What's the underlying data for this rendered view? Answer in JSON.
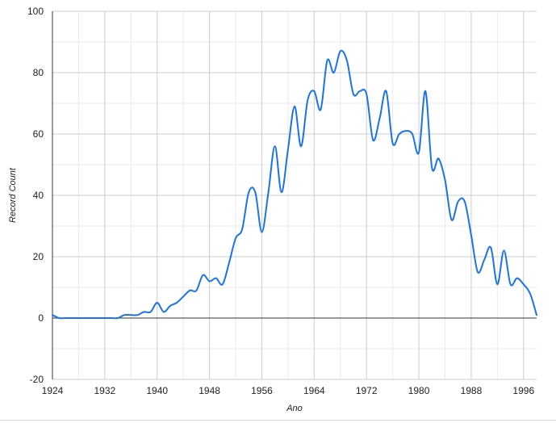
{
  "chart_data": {
    "type": "line",
    "title": "",
    "xlabel": "Ano",
    "ylabel": "Record Count",
    "xlim": [
      1924,
      1998
    ],
    "ylim": [
      -20,
      100
    ],
    "x_ticks": [
      1924,
      1932,
      1940,
      1948,
      1956,
      1964,
      1972,
      1980,
      1988,
      1996
    ],
    "y_ticks": [
      -20,
      0,
      20,
      40,
      60,
      80,
      100
    ],
    "grid": true,
    "legend": "none",
    "series_color": "#1a73e8",
    "series": [
      {
        "x": [
          1924,
          1925,
          1926,
          1927,
          1928,
          1929,
          1930,
          1931,
          1932,
          1933,
          1934,
          1935,
          1936,
          1937,
          1938,
          1939,
          1940,
          1941,
          1942,
          1943,
          1944,
          1945,
          1946,
          1947,
          1948,
          1949,
          1950,
          1951,
          1952,
          1953,
          1954,
          1955,
          1956,
          1957,
          1958,
          1959,
          1960,
          1961,
          1962,
          1963,
          1964,
          1965,
          1966,
          1967,
          1968,
          1969,
          1970,
          1971,
          1972,
          1973,
          1974,
          1975,
          1976,
          1977,
          1978,
          1979,
          1980,
          1981,
          1982,
          1983,
          1984,
          1985,
          1986,
          1987,
          1988,
          1989,
          1990,
          1991,
          1992,
          1993,
          1994,
          1995,
          1996,
          1997,
          1998
        ],
        "values": [
          1,
          0,
          0,
          0,
          0,
          0,
          0,
          0,
          0,
          0,
          0,
          1,
          1,
          1,
          2,
          2,
          5,
          2,
          4,
          5,
          7,
          9,
          9,
          14,
          12,
          13,
          11,
          18,
          26,
          29,
          41,
          41,
          28,
          41,
          56,
          41,
          55,
          69,
          56,
          71,
          74,
          68,
          84,
          80,
          87,
          84,
          73,
          74,
          73,
          58,
          65,
          74,
          57,
          60,
          61,
          60,
          54,
          74,
          49,
          52,
          45,
          32,
          38,
          38,
          27,
          15,
          19,
          23,
          11,
          22,
          11,
          13,
          11,
          8,
          1
        ]
      }
    ]
  }
}
